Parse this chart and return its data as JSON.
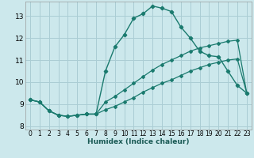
{
  "xlabel": "Humidex (Indice chaleur)",
  "bg_color": "#cce8ec",
  "grid_color": "#aacdd4",
  "line_color": "#1a7a6e",
  "xlim": [
    -0.5,
    23.5
  ],
  "ylim": [
    7.85,
    13.65
  ],
  "xticks": [
    0,
    1,
    2,
    3,
    4,
    5,
    6,
    7,
    8,
    9,
    10,
    11,
    12,
    13,
    14,
    15,
    16,
    17,
    18,
    19,
    20,
    21,
    22,
    23
  ],
  "yticks": [
    8,
    9,
    10,
    11,
    12,
    13
  ],
  "line_peaked_x": [
    0,
    1,
    2,
    3,
    4,
    5,
    6,
    7,
    8,
    9,
    10,
    11,
    12,
    13,
    14,
    15,
    16,
    17,
    18,
    19,
    20,
    21,
    22,
    23
  ],
  "line_peaked_y": [
    9.2,
    9.1,
    8.7,
    8.5,
    8.45,
    8.5,
    8.55,
    8.55,
    10.5,
    11.6,
    12.15,
    12.9,
    13.1,
    13.45,
    13.35,
    13.2,
    12.5,
    12.0,
    11.4,
    11.2,
    11.15,
    10.5,
    9.85,
    9.5
  ],
  "line_upper_x": [
    0,
    1,
    2,
    3,
    4,
    5,
    6,
    7,
    8,
    9,
    10,
    11,
    12,
    13,
    14,
    15,
    16,
    17,
    18,
    19,
    20,
    21,
    22,
    23
  ],
  "line_upper_y": [
    9.2,
    9.1,
    8.7,
    8.5,
    8.45,
    8.5,
    8.55,
    8.55,
    9.1,
    9.35,
    9.65,
    9.95,
    10.25,
    10.55,
    10.8,
    11.0,
    11.2,
    11.4,
    11.55,
    11.65,
    11.75,
    11.85,
    11.9,
    9.5
  ],
  "line_lower_x": [
    0,
    1,
    2,
    3,
    4,
    5,
    6,
    7,
    8,
    9,
    10,
    11,
    12,
    13,
    14,
    15,
    16,
    17,
    18,
    19,
    20,
    21,
    22,
    23
  ],
  "line_lower_y": [
    9.2,
    9.1,
    8.7,
    8.5,
    8.45,
    8.5,
    8.55,
    8.55,
    8.75,
    8.9,
    9.1,
    9.3,
    9.55,
    9.75,
    9.95,
    10.1,
    10.3,
    10.5,
    10.65,
    10.8,
    10.9,
    11.0,
    11.05,
    9.5
  ]
}
